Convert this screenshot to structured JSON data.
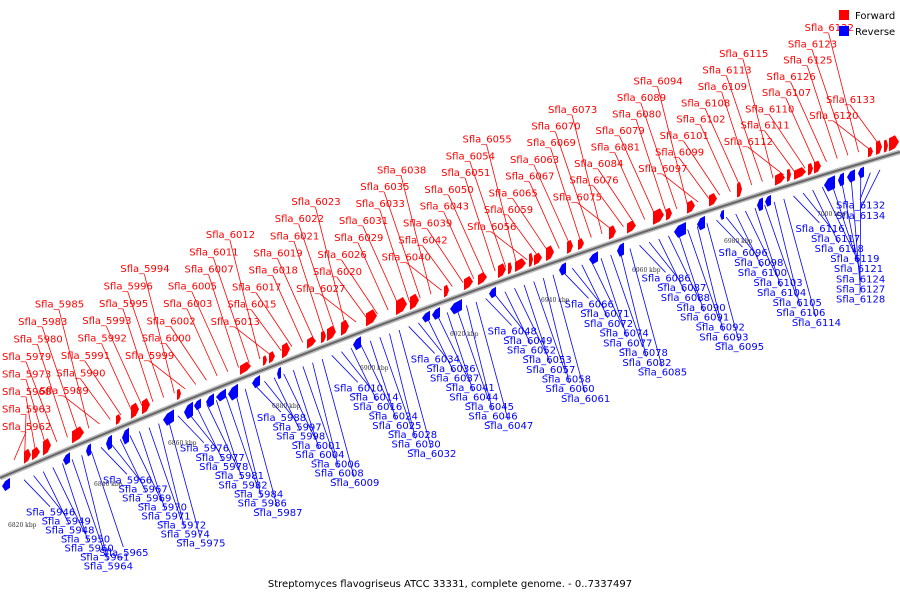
{
  "caption": "Streptomyces flavogriseus ATCC 33331, complete genome. - 0..7337497",
  "legend": [
    {
      "label": "Forward",
      "color": "#ff0000"
    },
    {
      "label": "Reverse",
      "color": "#0000ff"
    }
  ],
  "colors": {
    "forward": "#ff0000",
    "reverse": "#0000ff",
    "axis": "#666666"
  },
  "ticks": [
    "6820 kbp",
    "6840 kbp",
    "6860 kbp",
    "6880 kbp",
    "6900 kbp",
    "6920 kbp",
    "6940 kbp",
    "6960 kbp",
    "6980 kbp",
    "7000 kbp"
  ],
  "forward_genes": [
    "Sfla_5962",
    "Sfla_5963",
    "Sfla_5968",
    "Sfla_5973",
    "Sfla_5979",
    "Sfla_5980",
    "Sfla_5983",
    "Sfla_5985",
    "Sfla_5989",
    "Sfla_5990",
    "Sfla_5991",
    "Sfla_5992",
    "Sfla_5993",
    "Sfla_5995",
    "Sfla_5996",
    "Sfla_5994",
    "Sfla_5999",
    "Sfla_6000",
    "Sfla_6002",
    "Sfla_6003",
    "Sfla_6005",
    "Sfla_6007",
    "Sfla_6011",
    "Sfla_6012",
    "Sfla_6013",
    "Sfla_6015",
    "Sfla_6017",
    "Sfla_6018",
    "Sfla_6019",
    "Sfla_6021",
    "Sfla_6022",
    "Sfla_6023",
    "Sfla_6027",
    "Sfla_6020",
    "Sfla_6026",
    "Sfla_6029",
    "Sfla_6031",
    "Sfla_6033",
    "Sfla_6035",
    "Sfla_6038",
    "Sfla_6040",
    "Sfla_6042",
    "Sfla_6039",
    "Sfla_6043",
    "Sfla_6050",
    "Sfla_6051",
    "Sfla_6054",
    "Sfla_6055",
    "Sfla_6056",
    "Sfla_6059",
    "Sfla_6065",
    "Sfla_6067",
    "Sfla_6063",
    "Sfla_6069",
    "Sfla_6070",
    "Sfla_6073",
    "Sfla_6075",
    "Sfla_6076",
    "Sfla_6084",
    "Sfla_6081",
    "Sfla_6079",
    "Sfla_6080",
    "Sfla_6089",
    "Sfla_6094",
    "Sfla_6097",
    "Sfla_6099",
    "Sfla_6101",
    "Sfla_6102",
    "Sfla_6108",
    "Sfla_6109",
    "Sfla_6113",
    "Sfla_6115",
    "Sfla_6112",
    "Sfla_6111",
    "Sfla_6110",
    "Sfla_6107",
    "Sfla_6126",
    "Sfla_6125",
    "Sfla_6123",
    "Sfla_6122",
    "Sfla_6120",
    "Sfla_6133"
  ],
  "reverse_genes": [
    "Sfla_5946",
    "Sfla_5949",
    "Sfla_5948",
    "Sfla_5950",
    "Sfla_5960",
    "Sfla_5961",
    "Sfla_5964",
    "Sfla_5965",
    "Sfla_5966",
    "Sfla_5967",
    "Sfla_5969",
    "Sfla_5970",
    "Sfla_5971",
    "Sfla_5972",
    "Sfla_5974",
    "Sfla_5975",
    "Sfla_5976",
    "Sfla_5977",
    "Sfla_5978",
    "Sfla_5981",
    "Sfla_5982",
    "Sfla_5984",
    "Sfla_5986",
    "Sfla_5987",
    "Sfla_5988",
    "Sfla_5997",
    "Sfla_5998",
    "Sfla_6001",
    "Sfla_6004",
    "Sfla_6006",
    "Sfla_6008",
    "Sfla_6009",
    "Sfla_6010",
    "Sfla_6014",
    "Sfla_6016",
    "Sfla_6024",
    "Sfla_6025",
    "Sfla_6028",
    "Sfla_6030",
    "Sfla_6032",
    "Sfla_6034",
    "Sfla_6036",
    "Sfla_6037",
    "Sfla_6041",
    "Sfla_6044",
    "Sfla_6045",
    "Sfla_6046",
    "Sfla_6047",
    "Sfla_6048",
    "Sfla_6049",
    "Sfla_6052",
    "Sfla_6053",
    "Sfla_6057",
    "Sfla_6058",
    "Sfla_6060",
    "Sfla_6061",
    "Sfla_6066",
    "Sfla_6071",
    "Sfla_6072",
    "Sfla_6074",
    "Sfla_6077",
    "Sfla_6078",
    "Sfla_6082",
    "Sfla_6085",
    "Sfla_6086",
    "Sfla_6087",
    "Sfla_6088",
    "Sfla_6090",
    "Sfla_6091",
    "Sfla_6092",
    "Sfla_6093",
    "Sfla_6095",
    "Sfla_6096",
    "Sfla_6098",
    "Sfla_6100",
    "Sfla_6103",
    "Sfla_6104",
    "Sfla_6105",
    "Sfla_6106",
    "Sfla_6114",
    "Sfla_6116",
    "Sfla_6117",
    "Sfla_6118",
    "Sfla_6119",
    "Sfla_6121",
    "Sfla_6124",
    "Sfla_6127",
    "Sfla_6128",
    "Sfla_6132",
    "Sfla_6134"
  ]
}
